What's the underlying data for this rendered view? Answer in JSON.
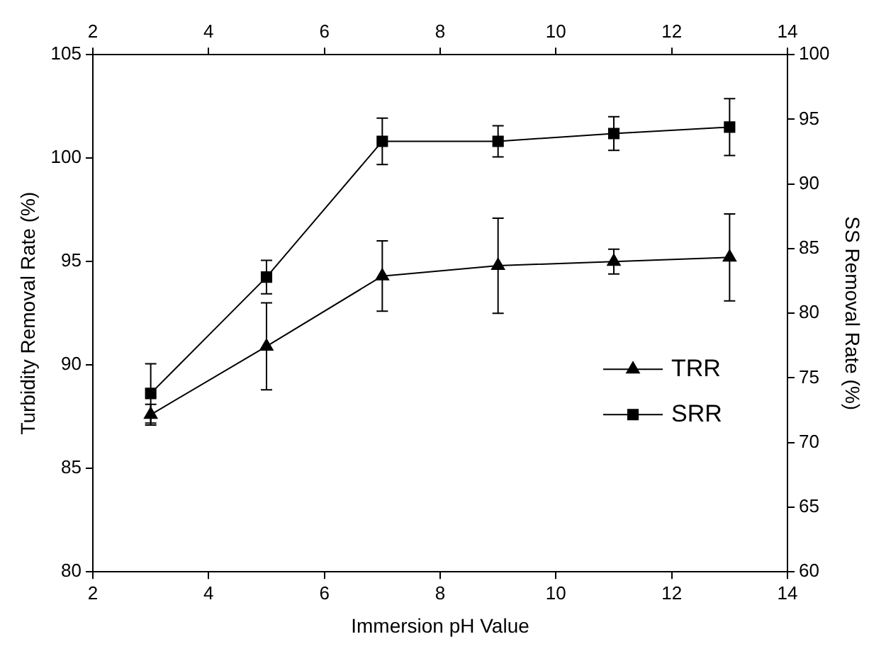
{
  "chart_data": {
    "type": "line",
    "xlabel": "Immersion pH Value",
    "ylabel": "Turbidity Removal Rate (%)",
    "y2label": "SS Removal Rate (%)",
    "x": [
      3,
      5,
      7,
      9,
      11,
      13
    ],
    "series": [
      {
        "name": "TRR",
        "color": "#000000",
        "marker": "triangle",
        "values": [
          87.6,
          90.9,
          94.3,
          94.8,
          95.0,
          95.2
        ],
        "errors": [
          0.5,
          2.1,
          1.7,
          2.3,
          0.6,
          2.1
        ]
      },
      {
        "name": "SRR",
        "color": "#000000",
        "marker": "square",
        "axis": "y2",
        "values": [
          73.8,
          82.8,
          93.3,
          93.3,
          93.9,
          94.4
        ],
        "errors": [
          2.3,
          1.3,
          1.8,
          1.2,
          1.3,
          2.2
        ]
      }
    ],
    "xlim": [
      2,
      14
    ],
    "xticks": [
      2,
      4,
      6,
      8,
      10,
      12,
      14
    ],
    "x2lim": [
      2,
      14
    ],
    "x2ticks": [
      2,
      4,
      6,
      8,
      10,
      12,
      14
    ],
    "ylim": [
      80,
      105
    ],
    "yticks": [
      80,
      85,
      90,
      95,
      100,
      105
    ],
    "y2lim": [
      60,
      100
    ],
    "y2ticks": [
      60,
      65,
      70,
      75,
      80,
      85,
      90,
      95,
      100
    ],
    "grid": false,
    "legend": "bottom right",
    "line_style": "solid"
  }
}
